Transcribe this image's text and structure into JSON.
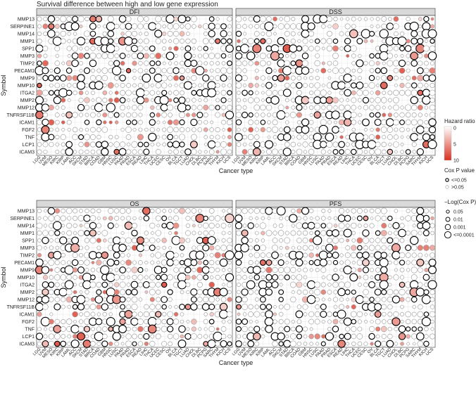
{
  "chart_data": {
    "type": "bubble-grid",
    "title": "Survival difference between high and low gene expression",
    "xlabel": "Cancer type",
    "ylabel": "Symbol",
    "genes": [
      "MMP13",
      "SERPINE1",
      "MMP14",
      "MMP1",
      "SPP1",
      "MMP3",
      "TIMP2",
      "PECAM1",
      "MMP9",
      "MMP10",
      "ITGA2",
      "MMP2",
      "MMP12",
      "TNFRSF11B",
      "ICAM1",
      "FGF2",
      "TNF",
      "LCP1",
      "ICAM3"
    ],
    "cancer_types": [
      "LGG",
      "UVM",
      "MESO",
      "KIRC",
      "KIRP",
      "LAML",
      "ACC",
      "SKCM",
      "STAD",
      "BRCA",
      "COAD",
      "GBM",
      "HNSC",
      "LUSC",
      "PAAD",
      "PRAD",
      "ESCA",
      "READ",
      "LIHC",
      "THCA",
      "UCEC",
      "CESC",
      "OV",
      "BLCA",
      "TGCT",
      "LUAD",
      "CHOL",
      "DLBC",
      "PCPG",
      "SARC",
      "THYM",
      "KICH",
      "UCS"
    ],
    "panels": [
      {
        "name": "DFI"
      },
      {
        "name": "DSS"
      },
      {
        "name": "OS"
      },
      {
        "name": "PFS"
      }
    ],
    "legend": {
      "hazard_ratio": {
        "title": "Hazard ratio",
        "ticks": [
          "0",
          "5",
          "10"
        ],
        "color_low": "#ffffff",
        "color_high": "#d7301f",
        "min": 0,
        "max": 10
      },
      "cox_p": {
        "title": "Cox P value",
        "items": [
          "<=0.05",
          ">0.05"
        ]
      },
      "log_cox_p": {
        "title": "−Log(Cox P)",
        "items": [
          "0.05",
          "0.01",
          "0.001",
          "<=0.0001"
        ]
      }
    },
    "colors": {
      "strip": "#d9d9d9",
      "grid": "#e6e6e6",
      "sig_stroke": "#000000",
      "nonsig_stroke": "#9a9a9a"
    }
  }
}
